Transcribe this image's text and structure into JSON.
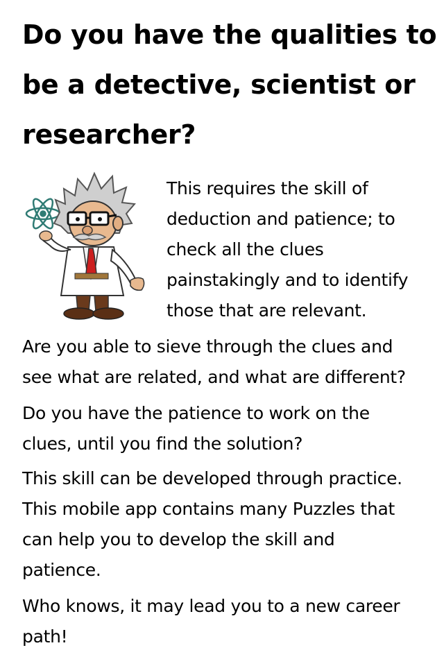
{
  "title": {
    "lines": [
      "Do you have the qualities to",
      "be a detective, scientist or",
      "researcher?"
    ]
  },
  "illustration": {
    "icon": "scientist-professor-icon",
    "atom_icon": "atom-icon"
  },
  "intro": {
    "lines": [
      "This requires the skill of",
      "deduction and patience; to",
      "check all the clues",
      "painstakingly and to identify",
      "those that are relevant."
    ]
  },
  "paragraphs": [
    {
      "lines": [
        "Are you able to sieve through the clues and",
        "see what are related, and what are different?"
      ]
    },
    {
      "lines": [
        "Do you have the patience to work on the",
        "clues, until you find the solution?"
      ]
    },
    {
      "lines": [
        "This skill can be developed through practice.",
        "This mobile app contains many Puzzles that",
        "can help you to develop the skill and",
        "patience."
      ]
    },
    {
      "lines": [
        "Who knows, it may lead you to a new career",
        "path!"
      ]
    }
  ],
  "colors": {
    "text": "#000000",
    "background": "#ffffff",
    "tie": "#cc1f1f",
    "coat": "#ffffff",
    "atom": "#2f7b74"
  }
}
